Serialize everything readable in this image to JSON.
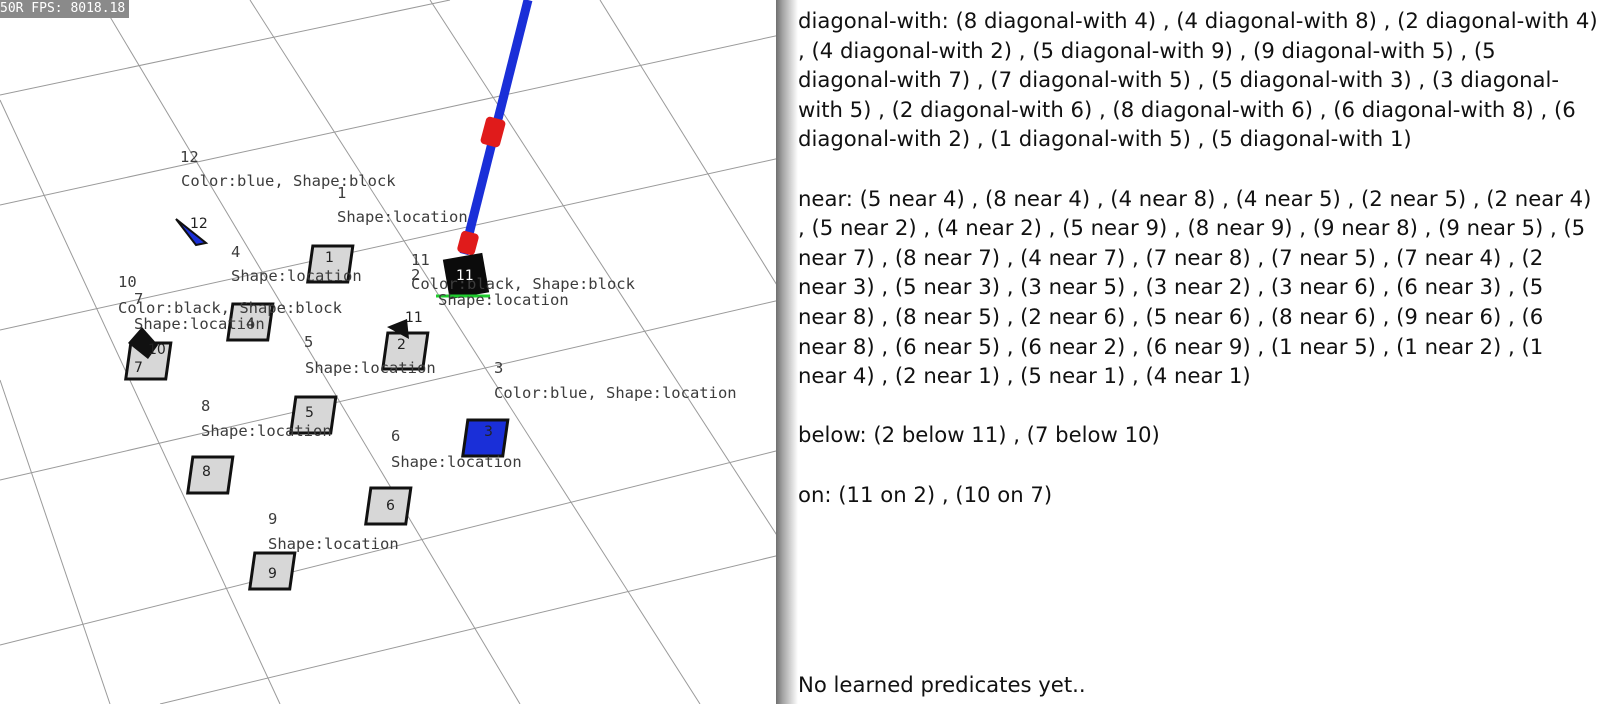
{
  "viewport": {
    "fps_label": "50R FPS: 8018.18",
    "objects": [
      {
        "id": "12",
        "info": "Color:blue, Shape:block",
        "marker": "12",
        "color": "#1a2fd8"
      },
      {
        "id": "1",
        "info": "Shape:location",
        "marker": "1",
        "color": "#c8c8c8"
      },
      {
        "id": "4",
        "info": "Shape:location",
        "marker": "4",
        "color": "#c8c8c8"
      },
      {
        "id": "10",
        "info": "Color:black, Shape:block",
        "marker": "10",
        "color": "#111111"
      },
      {
        "id": "7",
        "info": "Shape:location",
        "marker": "7",
        "color": "#c8c8c8"
      },
      {
        "id": "11",
        "info": "Color:black, Shape:block",
        "marker": "11",
        "color": "#111111"
      },
      {
        "id": "2",
        "info": "Shape:location",
        "marker": "2",
        "color": "#c8c8c8"
      },
      {
        "id": "5",
        "info": "Shape:location",
        "marker": "5",
        "color": "#c8c8c8"
      },
      {
        "id": "3",
        "info": "Color:blue, Shape:location",
        "marker": "3",
        "color": "#1a2fd8"
      },
      {
        "id": "8",
        "info": "Shape:location",
        "marker": "8",
        "color": "#c8c8c8"
      },
      {
        "id": "6",
        "info": "Shape:location",
        "marker": "6",
        "color": "#c8c8c8"
      },
      {
        "id": "9",
        "info": "Shape:location",
        "marker": "9",
        "color": "#c8c8c8"
      }
    ],
    "gripper_label": "11"
  },
  "predicates": {
    "diagonal_with": "diagonal-with: (8 diagonal-with 4) , (4 diagonal-with 8) , (2 diagonal-with 4) , (4 diagonal-with 2) , (5 diagonal-with 9) , (9 diagonal-with 5) , (5 diagonal-with 7) , (7 diagonal-with 5) , (5 diagonal-with 3) , (3 diagonal-with 5) , (2 diagonal-with 6) , (8 diagonal-with 6) , (6 diagonal-with 8) , (6 diagonal-with 2) , (1 diagonal-with 5) , (5 diagonal-with 1)",
    "near": "near: (5 near 4) , (8 near 4) , (4 near 8) , (4 near 5) , (2 near 5) , (2 near 4) , (5 near 2) , (4 near 2) , (5 near 9) , (8 near 9) , (9 near 8) , (9 near 5) , (5 near 7) , (8 near 7) , (4 near 7) , (7 near 8) , (7 near 5) , (7 near 4) , (2 near 3) , (5 near 3) , (3 near 5) , (3 near 2) , (3 near 6) , (6 near 3) , (5 near 8) , (8 near 5) , (2 near 6) , (5 near 6) , (8 near 6) , (9 near 6) , (6 near 8) , (6 near 5) , (6 near 2) , (6 near 9) , (1 near 5) , (1 near 2) , (1 near 4) , (2 near 1) , (5 near 1) , (4 near 1)",
    "below": "below: (2 below 11) , (7 below 10)",
    "on": "on: (11 on 2) , (10 on 7)",
    "learned": "No learned predicates yet.."
  },
  "colors": {
    "arm": "#1a2fd8",
    "joint": "#e01b1b",
    "grid": "#9a9a9a"
  }
}
